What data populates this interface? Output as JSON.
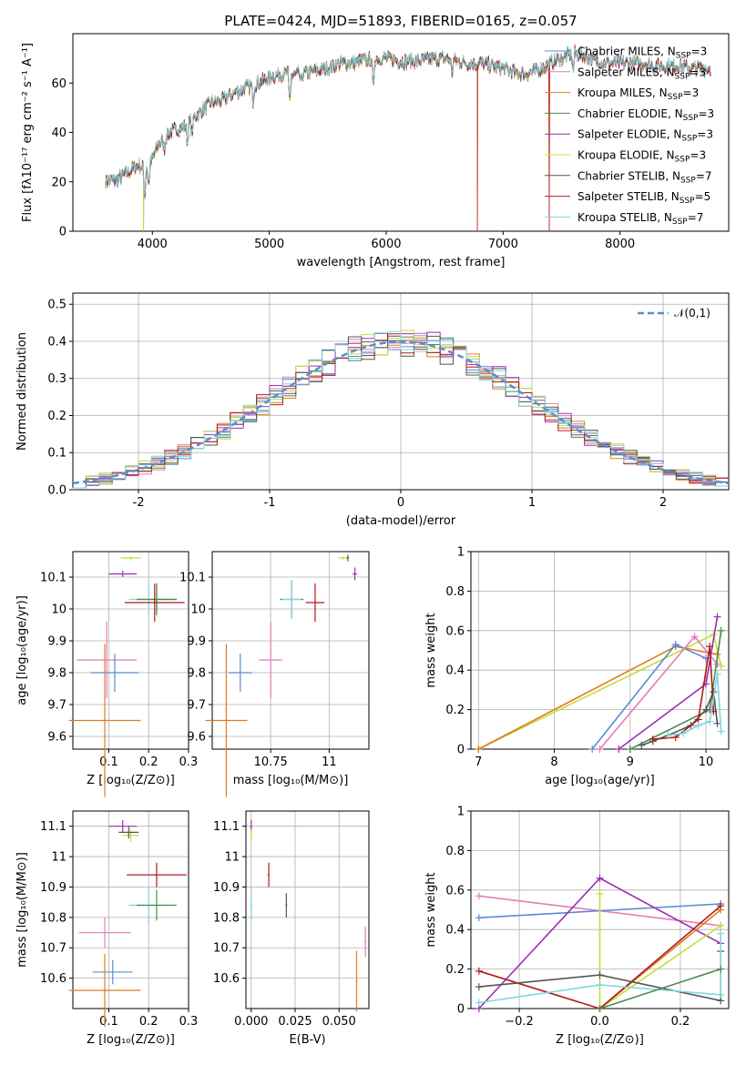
{
  "colors": {
    "Chabrier MILES": "#5b8bd6",
    "Salpeter MILES": "#e07fb8",
    "Kroupa MILES": "#e07b22",
    "Chabrier ELODIE": "#4d8a4d",
    "Salpeter ELODIE": "#9b2fb0",
    "Kroupa ELODIE": "#c6dc3c",
    "Chabrier STELIB": "#555555",
    "Salpeter STELIB": "#b01c1c",
    "Kroupa STELIB": "#7fd6dc"
  },
  "chart_data": [
    {
      "id": "spectrum",
      "type": "line",
      "title": "PLATE=0424, MJD=51893, FIBERID=0165, z=0.057",
      "xlabel": "wavelength [Angstrom, rest frame]",
      "ylabel": "Flux [fλ10⁻¹⁷ erg cm⁻² s⁻¹ A⁻¹]",
      "xlim": [
        3320,
        8930
      ],
      "ylim": [
        0,
        80
      ],
      "xticks": [
        4000,
        5000,
        6000,
        7000,
        8000
      ],
      "yticks": [
        0,
        20,
        40,
        60
      ],
      "grid": false,
      "legend_position": "right",
      "legend": [
        {
          "series": "Chabrier MILES",
          "text": "Chabrier MILES, N",
          "sub": "SSP",
          "post": "=3"
        },
        {
          "series": "Salpeter MILES",
          "text": "Salpeter MILES, N",
          "sub": "SSP",
          "post": "=3"
        },
        {
          "series": "Kroupa MILES",
          "text": "Kroupa MILES, N",
          "sub": "SSP",
          "post": "=3"
        },
        {
          "series": "Chabrier ELODIE",
          "text": "Chabrier ELODIE, N",
          "sub": "SSP",
          "post": "=3"
        },
        {
          "series": "Salpeter ELODIE",
          "text": "Salpeter ELODIE, N",
          "sub": "SSP",
          "post": "=3"
        },
        {
          "series": "Kroupa ELODIE",
          "text": "Kroupa ELODIE, N",
          "sub": "SSP",
          "post": "=3"
        },
        {
          "series": "Chabrier STELIB",
          "text": "Chabrier STELIB, N",
          "sub": "SSP",
          "post": "=7"
        },
        {
          "series": "Salpeter STELIB",
          "text": "Salpeter STELIB, N",
          "sub": "SSP",
          "post": "=5"
        },
        {
          "series": "Kroupa STELIB",
          "text": "Kroupa STELIB, N",
          "sub": "SSP",
          "post": "=7"
        }
      ],
      "continuum": [
        [
          3600,
          20
        ],
        [
          3700,
          21
        ],
        [
          3800,
          24
        ],
        [
          3880,
          27
        ],
        [
          3930,
          25
        ],
        [
          3970,
          26
        ],
        [
          4050,
          35
        ],
        [
          4150,
          40
        ],
        [
          4300,
          43
        ],
        [
          4400,
          48
        ],
        [
          4500,
          52
        ],
        [
          4600,
          53
        ],
        [
          4700,
          56
        ],
        [
          4800,
          58
        ],
        [
          4900,
          60
        ],
        [
          5000,
          62
        ],
        [
          5100,
          64
        ],
        [
          5200,
          63
        ],
        [
          5300,
          64
        ],
        [
          5400,
          65
        ],
        [
          5500,
          66
        ],
        [
          5600,
          68
        ],
        [
          5700,
          68
        ],
        [
          5800,
          69
        ],
        [
          5900,
          70
        ],
        [
          6000,
          70
        ],
        [
          6100,
          69
        ],
        [
          6200,
          69
        ],
        [
          6300,
          69
        ],
        [
          6400,
          70
        ],
        [
          6500,
          70
        ],
        [
          6600,
          69
        ],
        [
          6700,
          68
        ],
        [
          6800,
          68
        ],
        [
          6900,
          67
        ],
        [
          7000,
          66
        ],
        [
          7100,
          64
        ],
        [
          7200,
          64
        ],
        [
          7300,
          65
        ],
        [
          7400,
          68
        ],
        [
          7500,
          70
        ],
        [
          7600,
          72
        ],
        [
          7700,
          71
        ],
        [
          7800,
          69
        ],
        [
          7900,
          68
        ],
        [
          8000,
          68
        ],
        [
          8100,
          68
        ],
        [
          8200,
          68
        ],
        [
          8300,
          67
        ],
        [
          8400,
          67
        ],
        [
          8500,
          67
        ],
        [
          8600,
          66
        ],
        [
          8700,
          66
        ],
        [
          8780,
          66
        ]
      ],
      "absorption_lines": [
        [
          3934,
          -12
        ],
        [
          3969,
          -8
        ],
        [
          4102,
          -5
        ],
        [
          4300,
          -8
        ],
        [
          4340,
          -6
        ],
        [
          4861,
          -7
        ],
        [
          5175,
          -12
        ],
        [
          5270,
          -4
        ],
        [
          5890,
          -14
        ],
        [
          6563,
          -6
        ],
        [
          7600,
          -8
        ]
      ],
      "dropouts": [
        {
          "x": 3925,
          "series": [
            "Kroupa ELODIE",
            "Kroupa MILES"
          ]
        },
        {
          "x": 6780,
          "series": [
            "Kroupa ELODIE",
            "Kroupa MILES",
            "Salpeter STELIB"
          ]
        },
        {
          "x": 7395,
          "series": [
            "Salpeter STELIB",
            "Kroupa MILES"
          ]
        }
      ]
    },
    {
      "id": "residuals",
      "type": "histogram",
      "xlabel": "(data-model)/error",
      "ylabel": "Normed distribution",
      "xlim": [
        -2.5,
        2.5
      ],
      "ylim": [
        0,
        0.53
      ],
      "xticks": [
        -2,
        -1,
        0,
        1,
        2
      ],
      "yticks": [
        0.0,
        0.1,
        0.2,
        0.3,
        0.4,
        0.5
      ],
      "grid": true,
      "legend_position": "top-right",
      "reference_label": "𝒩(0,1)",
      "reference_color": "#5b8bd6",
      "bin_width": 0.1
    },
    {
      "id": "age-Z",
      "type": "errorbar",
      "xlabel": "Z [log₁₀(Z/Z⊙)]",
      "ylabel": "age  [log₁₀(age/yr)]",
      "xlim": [
        0.01,
        0.3
      ],
      "ylim": [
        9.56,
        10.18
      ],
      "xticks": [
        0.1,
        0.2,
        0.3
      ],
      "yticks": [
        9.6,
        9.7,
        9.8,
        9.9,
        10.0,
        10.1
      ],
      "grid": true,
      "points": [
        {
          "series": "Kroupa ELODIE",
          "x": 0.155,
          "xerr": 0.025,
          "y": 10.16,
          "yerr": 0.005
        },
        {
          "series": "Salpeter ELODIE",
          "x": 0.135,
          "xerr": 0.035,
          "y": 10.11,
          "yerr": 0.01
        },
        {
          "series": "Chabrier STELIB",
          "x": 0.22,
          "xerr": 0.05,
          "y": 10.03,
          "yerr": 0.04
        },
        {
          "series": "Kroupa STELIB",
          "x": 0.2,
          "xerr": 0.05,
          "y": 10.03,
          "yerr": 0.05
        },
        {
          "series": "Chabrier ELODIE",
          "x": 0.22,
          "xerr": 0.05,
          "y": 10.03,
          "yerr": 0.05
        },
        {
          "series": "Salpeter STELIB",
          "x": 0.215,
          "xerr": 0.075,
          "y": 10.02,
          "yerr": 0.06
        },
        {
          "series": "Salpeter MILES",
          "x": 0.095,
          "xerr": 0.075,
          "y": 9.84,
          "yerr": 0.12
        },
        {
          "series": "Chabrier MILES",
          "x": 0.115,
          "xerr": 0.06,
          "y": 9.8,
          "yerr": 0.06
        },
        {
          "series": "Kroupa MILES",
          "x": 0.09,
          "xerr": 0.09,
          "y": 9.65,
          "yerr": 0.24
        }
      ]
    },
    {
      "id": "age-mass",
      "type": "errorbar",
      "xlabel": "mass [log₁₀(M/M⊙)]",
      "ylabel": "",
      "xlim": [
        10.5,
        11.17
      ],
      "ylim": [
        9.56,
        10.18
      ],
      "xticks": [
        10.75,
        11.0
      ],
      "yticks": [
        9.6,
        9.7,
        9.8,
        9.9,
        10.0,
        10.1
      ],
      "grid": true,
      "points": [
        {
          "series": "Kroupa ELODIE",
          "x": 11.06,
          "xerr": 0.02,
          "y": 10.16,
          "yerr": 0.005
        },
        {
          "series": "Chabrier STELIB",
          "x": 11.08,
          "xerr": 0.005,
          "y": 10.16,
          "yerr": 0.01
        },
        {
          "series": "Salpeter ELODIE",
          "x": 11.11,
          "xerr": 0.01,
          "y": 10.11,
          "yerr": 0.02
        },
        {
          "series": "Chabrier ELODIE",
          "x": 10.84,
          "xerr": 0.05,
          "y": 10.03,
          "yerr": 0.06
        },
        {
          "series": "Kroupa STELIB",
          "x": 10.84,
          "xerr": 0.04,
          "y": 10.03,
          "yerr": 0.06
        },
        {
          "series": "Salpeter STELIB",
          "x": 10.94,
          "xerr": 0.04,
          "y": 10.02,
          "yerr": 0.06
        },
        {
          "series": "Salpeter MILES",
          "x": 10.75,
          "xerr": 0.05,
          "y": 9.84,
          "yerr": 0.12
        },
        {
          "series": "Chabrier MILES",
          "x": 10.62,
          "xerr": 0.05,
          "y": 9.8,
          "yerr": 0.06
        },
        {
          "series": "Kroupa MILES",
          "x": 10.56,
          "xerr": 0.09,
          "y": 9.65,
          "yerr": 0.24
        }
      ]
    },
    {
      "id": "weight-age",
      "type": "line",
      "xlabel": "age  [log₁₀(age/yr)]",
      "ylabel": "mass weight",
      "xlim": [
        6.9,
        10.3
      ],
      "ylim": [
        0,
        1.0
      ],
      "xticks": [
        7,
        8,
        9,
        10
      ],
      "yticks": [
        0.0,
        0.2,
        0.4,
        0.6,
        0.8,
        1.0
      ],
      "grid": true,
      "series": [
        {
          "name": "Kroupa ELODIE",
          "x": [
            7.0,
            10.1,
            10.2
          ],
          "y": [
            0.0,
            0.58,
            0.42
          ]
        },
        {
          "name": "Kroupa MILES",
          "x": [
            7.0,
            9.6,
            10.15
          ],
          "y": [
            0.0,
            0.52,
            0.48
          ]
        },
        {
          "name": "Chabrier MILES",
          "x": [
            8.5,
            9.6,
            10.0
          ],
          "y": [
            0.0,
            0.53,
            0.46
          ]
        },
        {
          "name": "Salpeter MILES",
          "x": [
            8.6,
            9.85,
            10.15
          ],
          "y": [
            0.0,
            0.57,
            0.43
          ]
        },
        {
          "name": "Salpeter ELODIE",
          "x": [
            8.85,
            10.0,
            10.15
          ],
          "y": [
            0.0,
            0.33,
            0.67
          ]
        },
        {
          "name": "Chabrier ELODIE",
          "x": [
            9.0,
            10.05,
            10.2
          ],
          "y": [
            0.0,
            0.2,
            0.6
          ]
        },
        {
          "name": "Chabrier STELIB",
          "x": [
            9.15,
            9.3,
            9.5,
            9.8,
            10.0,
            10.1,
            10.15
          ],
          "y": [
            0.02,
            0.04,
            0.07,
            0.12,
            0.2,
            0.29,
            0.13
          ]
        },
        {
          "name": "Salpeter STELIB",
          "x": [
            9.3,
            9.6,
            9.9,
            10.05,
            10.1
          ],
          "y": [
            0.05,
            0.06,
            0.15,
            0.52,
            0.19
          ]
        },
        {
          "name": "Kroupa STELIB",
          "x": [
            9.5,
            9.7,
            9.9,
            10.05,
            10.15,
            10.2
          ],
          "y": [
            0.07,
            0.08,
            0.12,
            0.14,
            0.38,
            0.09
          ]
        }
      ]
    },
    {
      "id": "mass-Z",
      "type": "errorbar",
      "xlabel": "Z [log₁₀(Z/Z⊙)]",
      "ylabel": "mass [log₁₀(M/M⊙)]",
      "xlim": [
        0.01,
        0.3
      ],
      "ylim": [
        10.5,
        11.15
      ],
      "xticks": [
        0.1,
        0.2,
        0.3
      ],
      "yticks": [
        10.6,
        10.7,
        10.8,
        10.9,
        11.0,
        11.1
      ],
      "grid": true,
      "points": [
        {
          "series": "Salpeter ELODIE",
          "x": 0.135,
          "xerr": 0.035,
          "y": 11.1,
          "yerr": 0.02
        },
        {
          "series": "Kroupa ELODIE",
          "x": 0.155,
          "xerr": 0.02,
          "y": 11.07,
          "yerr": 0.02
        },
        {
          "series": "Chabrier STELIB",
          "x": 0.15,
          "xerr": 0.025,
          "y": 11.08,
          "yerr": 0.02
        },
        {
          "series": "Salpeter STELIB",
          "x": 0.22,
          "xerr": 0.075,
          "y": 10.94,
          "yerr": 0.04
        },
        {
          "series": "Kroupa STELIB",
          "x": 0.2,
          "xerr": 0.05,
          "y": 10.84,
          "yerr": 0.06
        },
        {
          "series": "Chabrier ELODIE",
          "x": 0.22,
          "xerr": 0.05,
          "y": 10.84,
          "yerr": 0.05
        },
        {
          "series": "Salpeter MILES",
          "x": 0.09,
          "xerr": 0.065,
          "y": 10.75,
          "yerr": 0.05
        },
        {
          "series": "Chabrier MILES",
          "x": 0.11,
          "xerr": 0.05,
          "y": 10.62,
          "yerr": 0.04
        },
        {
          "series": "Kroupa MILES",
          "x": 0.09,
          "xerr": 0.09,
          "y": 10.56,
          "yerr": 0.12
        }
      ]
    },
    {
      "id": "mass-EBV",
      "type": "errorbar",
      "xlabel": "E(B-V)",
      "ylabel": "",
      "xlim": [
        -0.003,
        0.067
      ],
      "ylim": [
        10.5,
        11.15
      ],
      "xticks": [
        0.0,
        0.025,
        0.05
      ],
      "xtick_labels": [
        "0.000",
        "0.025",
        "0.050"
      ],
      "yticks": [
        10.6,
        10.7,
        10.8,
        10.9,
        11.0,
        11.1
      ],
      "grid": true,
      "points": [
        {
          "series": "Salpeter ELODIE",
          "x": 0.0,
          "xerr": 0,
          "y": 11.1,
          "yerr": 0.02
        },
        {
          "series": "Kroupa ELODIE",
          "x": 0.0,
          "xerr": 0,
          "y": 11.07,
          "yerr": 0.02
        },
        {
          "series": "Salpeter STELIB",
          "x": 0.01,
          "xerr": 0,
          "y": 10.94,
          "yerr": 0.04
        },
        {
          "series": "Chabrier STELIB",
          "x": 0.02,
          "xerr": 0,
          "y": 10.84,
          "yerr": 0.04
        },
        {
          "series": "Kroupa STELIB",
          "x": 0.0,
          "xerr": 0,
          "y": 10.84,
          "yerr": 0.05
        },
        {
          "series": "Salpeter MILES",
          "x": 0.065,
          "xerr": 0,
          "y": 10.72,
          "yerr": 0.05
        },
        {
          "series": "Kroupa MILES",
          "x": 0.06,
          "xerr": 0,
          "y": 10.59,
          "yerr": 0.1
        }
      ]
    },
    {
      "id": "weight-Z",
      "type": "line",
      "xlabel": "Z [log₁₀(Z/Z⊙)]",
      "ylabel": "mass weight",
      "xlim": [
        -0.32,
        0.32
      ],
      "ylim": [
        0,
        1.0
      ],
      "xticks": [
        -0.2,
        0.0,
        0.2
      ],
      "xtick_labels": [
        "−0.2",
        "0.0",
        "0.2"
      ],
      "yticks": [
        0.0,
        0.2,
        0.4,
        0.6,
        0.8,
        1.0
      ],
      "grid": true,
      "series": [
        {
          "name": "Salpeter MILES",
          "x": [
            -0.3,
            0.3
          ],
          "y": [
            0.57,
            0.42
          ]
        },
        {
          "name": "Chabrier MILES",
          "x": [
            -0.3,
            0.3
          ],
          "y": [
            0.46,
            0.53
          ]
        },
        {
          "name": "Salpeter ELODIE",
          "x": [
            -0.3,
            0.0,
            0.3
          ],
          "y": [
            0.0,
            0.66,
            0.33
          ]
        },
        {
          "name": "Kroupa ELODIE",
          "x": [
            0.0,
            0.0,
            0.3
          ],
          "y": [
            0.58,
            0.0,
            0.42
          ]
        },
        {
          "name": "Kroupa MILES",
          "x": [
            0.0,
            0.3
          ],
          "y": [
            0.0,
            0.5
          ]
        },
        {
          "name": "Salpeter STELIB",
          "x": [
            -0.3,
            0.0,
            0.3
          ],
          "y": [
            0.19,
            0.0,
            0.52
          ]
        },
        {
          "name": "Chabrier STELIB",
          "x": [
            -0.3,
            0.0,
            0.3,
            0.3
          ],
          "y": [
            0.11,
            0.17,
            0.04,
            0.29
          ]
        },
        {
          "name": "Kroupa STELIB",
          "x": [
            -0.3,
            0.0,
            0.3,
            0.3
          ],
          "y": [
            0.03,
            0.12,
            0.07,
            0.38
          ]
        },
        {
          "name": "Chabrier ELODIE",
          "x": [
            0.0,
            0.3
          ],
          "y": [
            0.0,
            0.2
          ]
        }
      ]
    }
  ]
}
